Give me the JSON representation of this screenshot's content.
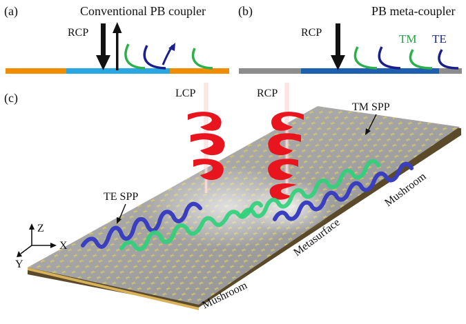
{
  "panels": {
    "a": {
      "tag": "(a)",
      "title": "Conventional PB coupler",
      "rcp_label": "RCP"
    },
    "b": {
      "tag": "(b)",
      "title": "PB meta-coupler",
      "rcp_label": "RCP",
      "tm_label": "TM",
      "te_label": "TE"
    },
    "c": {
      "tag": "(c)",
      "lcp_label": "LCP",
      "rcp_label": "RCP",
      "tm_spp_label": "TM SPP",
      "te_spp_label": "TE SPP",
      "mushroom_right_label": "Mushroom",
      "metasurface_label": "Metasurface",
      "mushroom_front_label": "Mushroom",
      "axis_z": "Z",
      "axis_x": "X",
      "axis_y": "Y"
    }
  },
  "colors": {
    "orange": "#f08c00",
    "cyan": "#2aa7e0",
    "dark_blue": "#1f4fa8",
    "gray": "#8c8c8c",
    "green": "#2bb04a",
    "navy": "#1a1f8c",
    "red": "#e8141e",
    "tm_text": "#22a046",
    "te_text": "#1b2a8c"
  }
}
